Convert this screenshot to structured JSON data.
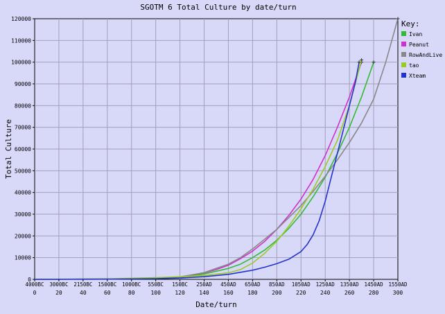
{
  "chart_data": {
    "type": "line",
    "title": "SGOTM 6 Total Culture by date/turn",
    "xlabel": "Date/turn",
    "ylabel": "Total Culture",
    "xlim": [
      0,
      300
    ],
    "ylim": [
      0,
      120000
    ],
    "y_ticks": [
      0,
      10000,
      20000,
      30000,
      40000,
      50000,
      60000,
      70000,
      80000,
      90000,
      100000,
      110000,
      120000
    ],
    "y_tick_labels": [
      "0",
      "10000",
      "20000",
      "30000",
      "40000",
      "50000",
      "60000",
      "70000",
      "80000",
      "90000",
      "100000",
      "110000",
      "120000"
    ],
    "x_turn_ticks": [
      0,
      20,
      40,
      60,
      80,
      100,
      120,
      140,
      160,
      180,
      200,
      220,
      240,
      260,
      280,
      300
    ],
    "x_turn_labels": [
      "0",
      "20",
      "40",
      "60",
      "80",
      "100",
      "120",
      "140",
      "160",
      "180",
      "200",
      "220",
      "240",
      "260",
      "280",
      "300"
    ],
    "x_date_labels": [
      "4000BC",
      "3000BC",
      "2150BC",
      "1500BC",
      "1000BC",
      "550BC",
      "150BC",
      "250AD",
      "450AD",
      "650AD",
      "850AD",
      "1050AD",
      "1250AD",
      "1350AD",
      "1450AD",
      "1550AD"
    ],
    "grid": true,
    "legend_title": "Key:",
    "legend_position": "top-right",
    "series": [
      {
        "name": "Ivan",
        "color": "#33bb33",
        "x": [
          0,
          60,
          100,
          120,
          140,
          160,
          170,
          180,
          190,
          200,
          210,
          220,
          230,
          240,
          250,
          260,
          270,
          280
        ],
        "y": [
          0,
          150,
          450,
          1000,
          2500,
          5000,
          7000,
          10000,
          13500,
          18000,
          23500,
          30000,
          38000,
          47000,
          58000,
          70000,
          84000,
          100000
        ]
      },
      {
        "name": "Peanut",
        "color": "#cc33cc",
        "x": [
          0,
          60,
          100,
          120,
          140,
          150,
          160,
          170,
          180,
          190,
          200,
          210,
          220,
          230,
          240,
          250,
          260,
          270
        ],
        "y": [
          0,
          150,
          450,
          1100,
          3000,
          4500,
          6500,
          9500,
          13000,
          17500,
          23000,
          29500,
          37000,
          46000,
          57000,
          70000,
          84000,
          100000
        ]
      },
      {
        "name": "RowAndLive",
        "color": "#888888",
        "x": [
          0,
          60,
          100,
          120,
          140,
          160,
          170,
          180,
          190,
          200,
          210,
          220,
          230,
          240,
          250,
          260,
          270,
          280,
          290,
          300
        ],
        "y": [
          0,
          150,
          450,
          1100,
          3100,
          7000,
          10000,
          14000,
          18500,
          23000,
          28500,
          34000,
          40500,
          47500,
          55000,
          63000,
          72000,
          83000,
          100000,
          120000
        ]
      },
      {
        "name": "tao",
        "color": "#99cc22",
        "x": [
          0,
          60,
          100,
          120,
          140,
          160,
          170,
          180,
          190,
          200,
          210,
          220,
          230,
          240,
          250,
          260,
          270
        ],
        "y": [
          0,
          200,
          800,
          1200,
          1800,
          3000,
          4500,
          7500,
          12000,
          17500,
          24500,
          32500,
          41500,
          52000,
          64000,
          80000,
          101000
        ]
      },
      {
        "name": "Xteam",
        "color": "#2233cc",
        "x": [
          0,
          60,
          100,
          120,
          140,
          160,
          180,
          190,
          200,
          210,
          220,
          225,
          230,
          235,
          240,
          245,
          250,
          255,
          260,
          265,
          268
        ],
        "y": [
          0,
          100,
          300,
          600,
          1200,
          2300,
          4200,
          5600,
          7200,
          9300,
          12800,
          16000,
          20500,
          27000,
          36000,
          47000,
          58000,
          69000,
          80000,
          91000,
          100000
        ]
      }
    ]
  }
}
